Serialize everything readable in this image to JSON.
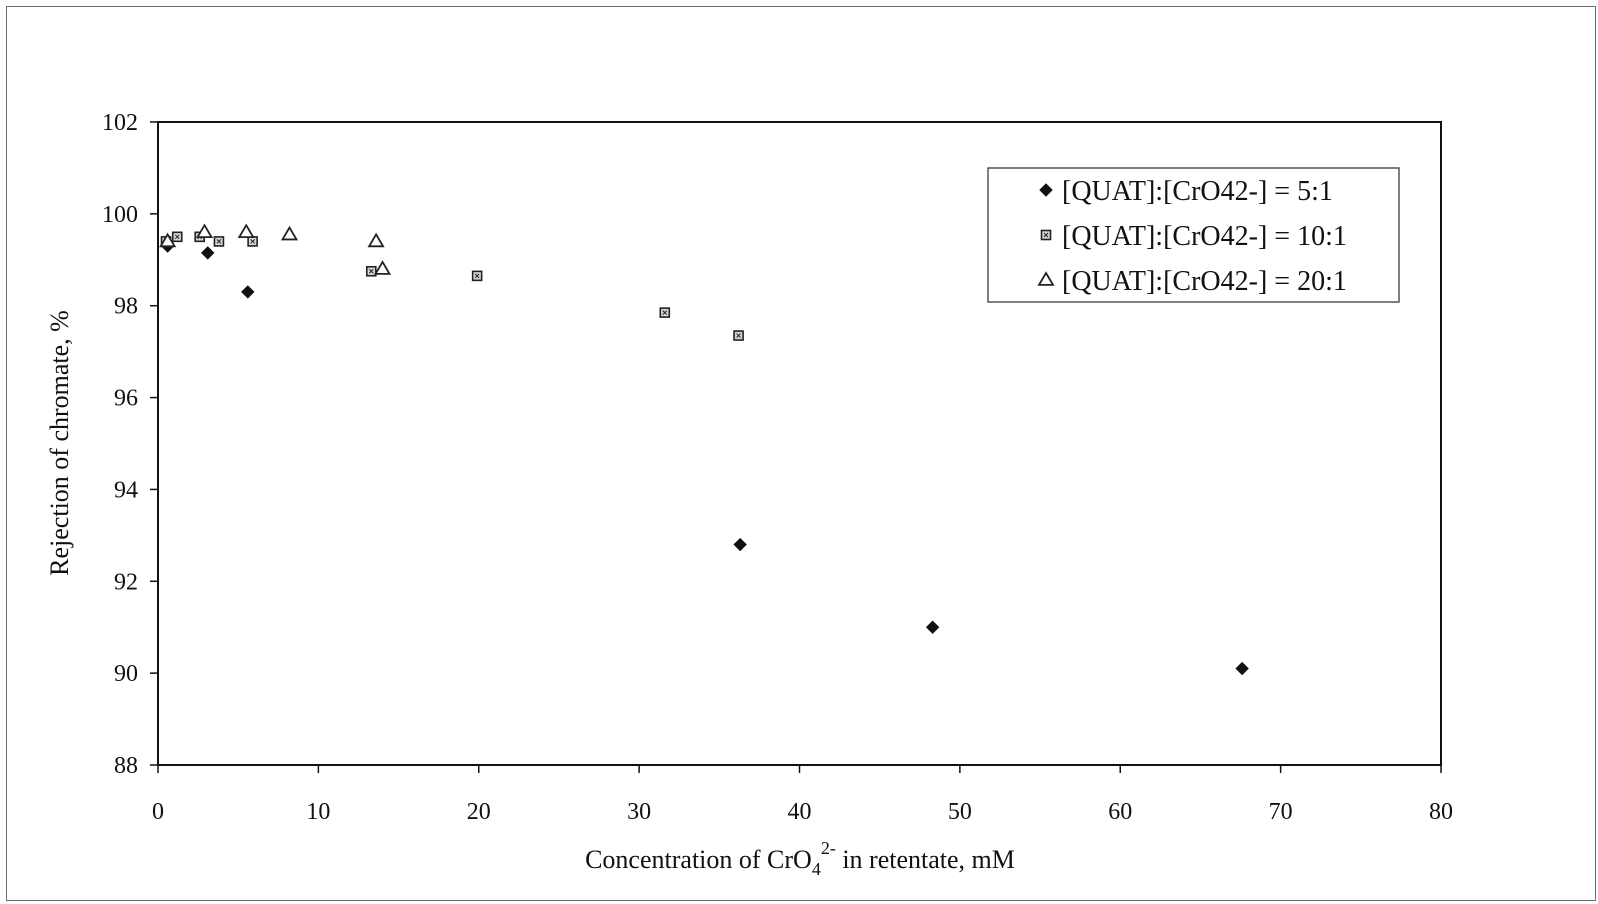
{
  "chart_data": {
    "type": "scatter",
    "xlim": [
      0,
      80
    ],
    "ylim": [
      88,
      102
    ],
    "xticks": [
      "0",
      "10",
      "20",
      "30",
      "40",
      "50",
      "60",
      "70",
      "80"
    ],
    "yticks": [
      "88",
      "90",
      "92",
      "94",
      "96",
      "98",
      "100",
      "102"
    ],
    "xlabel": {
      "prefix": "Concentration of CrO",
      "subscript": "4",
      "superscript": "2-",
      "suffix": " in retentate, mM"
    },
    "ylabel": "Rejection of chromate, %",
    "grid": false,
    "legend_position": "top-right",
    "series": [
      {
        "name": "[QUAT]:[CrO42-] = 5:1",
        "marker": "diamond",
        "color": "#111111",
        "points": [
          {
            "x": 0.6,
            "y": 99.3
          },
          {
            "x": 3.1,
            "y": 99.15
          },
          {
            "x": 5.6,
            "y": 98.3
          },
          {
            "x": 36.3,
            "y": 92.8
          },
          {
            "x": 48.3,
            "y": 91.0
          },
          {
            "x": 67.6,
            "y": 90.1
          }
        ]
      },
      {
        "name": "[QUAT]:[CrO42-] = 10:1",
        "marker": "square",
        "color": "#222222",
        "points": [
          {
            "x": 0.5,
            "y": 99.4
          },
          {
            "x": 1.2,
            "y": 99.5
          },
          {
            "x": 2.6,
            "y": 99.5
          },
          {
            "x": 3.8,
            "y": 99.4
          },
          {
            "x": 5.9,
            "y": 99.4
          },
          {
            "x": 13.3,
            "y": 98.75
          },
          {
            "x": 19.9,
            "y": 98.65
          },
          {
            "x": 31.6,
            "y": 97.85
          },
          {
            "x": 36.2,
            "y": 97.35
          }
        ]
      },
      {
        "name": "[QUAT]:[CrO42-] = 20:1",
        "marker": "triangle",
        "color": "#222222",
        "points": [
          {
            "x": 0.6,
            "y": 99.4
          },
          {
            "x": 2.9,
            "y": 99.6
          },
          {
            "x": 5.5,
            "y": 99.6
          },
          {
            "x": 8.2,
            "y": 99.55
          },
          {
            "x": 13.6,
            "y": 99.4
          },
          {
            "x": 14.0,
            "y": 98.8
          }
        ]
      }
    ]
  }
}
